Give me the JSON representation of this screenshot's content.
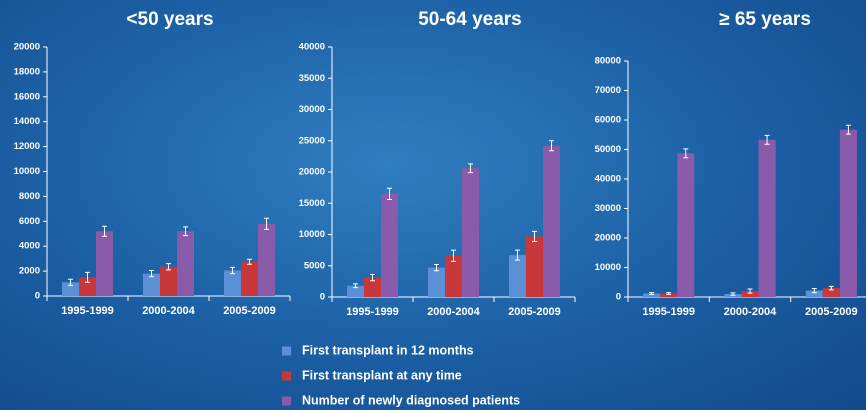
{
  "chart_data": [
    {
      "type": "bar",
      "title": "<50 years",
      "categories": [
        "1995-1999",
        "2000-2004",
        "2005-2009"
      ],
      "ylim": [
        0,
        20000
      ],
      "yticks": [
        0,
        2000,
        4000,
        6000,
        8000,
        10000,
        12000,
        14000,
        16000,
        18000,
        20000
      ],
      "series": [
        {
          "name": "First transplant in 12 months",
          "color": "#5b8fd6",
          "values": [
            1100,
            1800,
            2050
          ],
          "errors": [
            250,
            250,
            250
          ]
        },
        {
          "name": "First transplant at any time",
          "color": "#c8383a",
          "values": [
            1500,
            2350,
            2750
          ],
          "errors": [
            400,
            250,
            200
          ]
        },
        {
          "name": "Number of newly diagnosed patients",
          "color": "#8a5bab",
          "values": [
            5200,
            5200,
            5800
          ],
          "errors": [
            400,
            350,
            450
          ]
        }
      ]
    },
    {
      "type": "bar",
      "title": "50-64 years",
      "categories": [
        "1995-1999",
        "2000-2004",
        "2005-2009"
      ],
      "ylim": [
        0,
        40000
      ],
      "yticks": [
        0,
        5000,
        10000,
        15000,
        20000,
        25000,
        30000,
        35000,
        40000
      ],
      "series": [
        {
          "color": "#5b8fd6",
          "values": [
            1800,
            4700,
            6700
          ],
          "errors": [
            300,
            500,
            800
          ]
        },
        {
          "color": "#c8383a",
          "values": [
            3100,
            6600,
            9700
          ],
          "errors": [
            500,
            900,
            800
          ]
        },
        {
          "color": "#8a5bab",
          "values": [
            16500,
            20600,
            24200
          ],
          "errors": [
            900,
            700,
            800
          ]
        }
      ]
    },
    {
      "type": "bar",
      "title": "≥ 65 years",
      "categories": [
        "1995-1999",
        "2000-2004",
        "2005-2009"
      ],
      "ylim": [
        0,
        80000
      ],
      "yticks": [
        0,
        10000,
        20000,
        30000,
        40000,
        50000,
        60000,
        70000,
        80000
      ],
      "series": [
        {
          "color": "#5b8fd6",
          "values": [
            1200,
            1000,
            2200
          ],
          "errors": [
            300,
            400,
            700
          ]
        },
        {
          "color": "#c8383a",
          "values": [
            1200,
            2000,
            3000
          ],
          "errors": [
            300,
            700,
            600
          ]
        },
        {
          "color": "#8a5bab",
          "values": [
            48700,
            53300,
            56700
          ],
          "errors": [
            1500,
            1500,
            1500
          ]
        }
      ]
    }
  ]
}
